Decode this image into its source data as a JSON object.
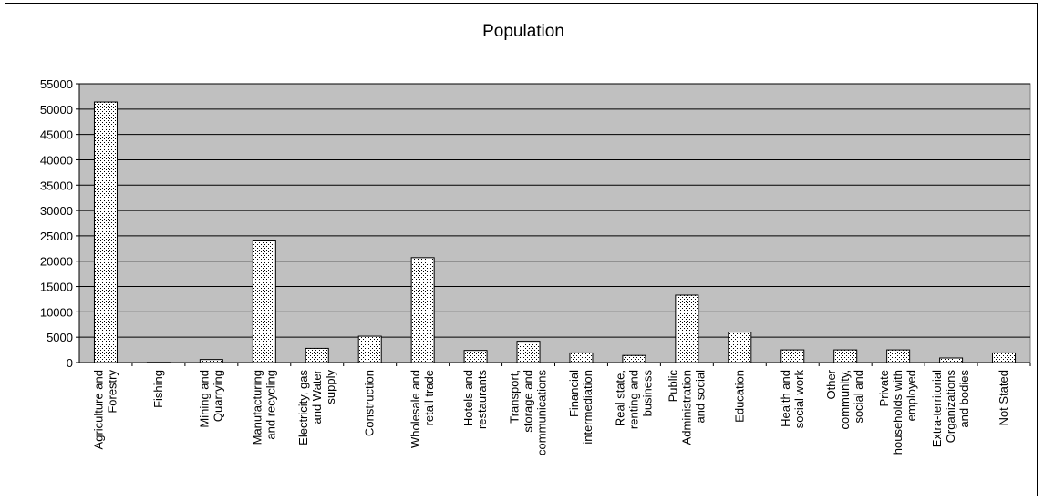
{
  "chart_data": {
    "type": "bar",
    "title": "Population",
    "xlabel": "",
    "ylabel": "",
    "ylim": [
      0,
      55000
    ],
    "y_ticks": [
      0,
      5000,
      10000,
      15000,
      20000,
      25000,
      30000,
      35000,
      40000,
      45000,
      50000,
      55000
    ],
    "grid": true,
    "legend": "none",
    "plot_background": "#c0c0c0",
    "bar_fill": "#ffffff",
    "bar_pattern_color": "#000000",
    "categories": [
      [
        "Agriculture and",
        "Forestry"
      ],
      [
        "Fishing"
      ],
      [
        "Mining and",
        "Quarrying"
      ],
      [
        "Manufacturing",
        "and recycling"
      ],
      [
        "Electricity, gas",
        "and Water",
        "supply"
      ],
      [
        "Construction"
      ],
      [
        "Wholesale and",
        "retail trade"
      ],
      [
        "Hotels and",
        "restaurants"
      ],
      [
        "Transport,",
        "storage and",
        "communications"
      ],
      [
        "Financial",
        "intermediation"
      ],
      [
        "Real state,",
        "renting and",
        "business"
      ],
      [
        "Public",
        "Administration",
        "and social"
      ],
      [
        "Education"
      ],
      [
        "Health and",
        "social work"
      ],
      [
        "Other",
        "community,",
        "social and"
      ],
      [
        "Private",
        "households with",
        "employed"
      ],
      [
        "Extra-territorial",
        "Organizations",
        "and bodies"
      ],
      [
        "Not Stated"
      ]
    ],
    "values": [
      51400,
      50,
      600,
      24000,
      2800,
      5200,
      20700,
      2400,
      4200,
      1900,
      1400,
      13300,
      6000,
      2500,
      2500,
      2500,
      900,
      1900
    ]
  }
}
